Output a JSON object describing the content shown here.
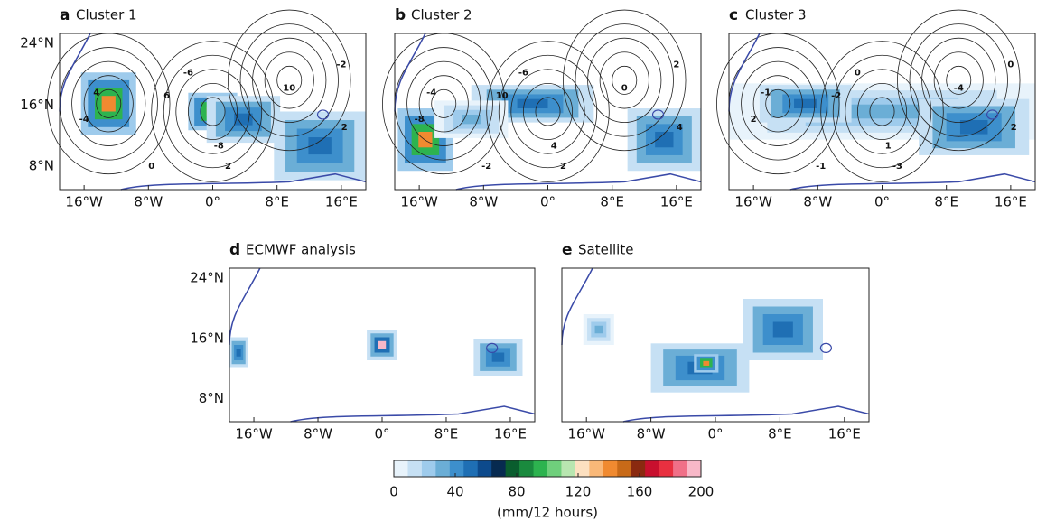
{
  "panels": [
    {
      "letter": "a",
      "title": "Cluster 1",
      "xticks": [
        "16°W",
        "8°W",
        "0°",
        "8°E",
        "16°E"
      ],
      "yticks": [
        "24°N",
        "16°N",
        "8°N"
      ],
      "contour_labels": [
        "4",
        "-4",
        "-6",
        "6",
        "-8",
        "10",
        "2",
        "0",
        "-2",
        "2"
      ]
    },
    {
      "letter": "b",
      "title": "Cluster 2",
      "xticks": [
        "16°W",
        "8°W",
        "0°",
        "8°E",
        "16°E"
      ],
      "contour_labels": [
        "-4",
        "-8",
        "-6",
        "10",
        "4",
        "0",
        "2",
        "-2",
        "2",
        "4"
      ]
    },
    {
      "letter": "c",
      "title": "Cluster 3",
      "xticks": [
        "16°W",
        "8°W",
        "0°",
        "8°E",
        "16°E"
      ],
      "contour_labels": [
        "-1",
        "2",
        "0",
        "-2",
        "1",
        "-4",
        "-3",
        "-1",
        "0",
        "2"
      ]
    },
    {
      "letter": "d",
      "title": "ECMWF analysis",
      "xticks": [
        "16°W",
        "8°W",
        "0°",
        "8°E",
        "16°E"
      ],
      "yticks": [
        "24°N",
        "16°N",
        "8°N"
      ]
    },
    {
      "letter": "e",
      "title": "Satellite",
      "xticks": [
        "16°W",
        "8°W",
        "0°",
        "8°E",
        "16°E"
      ]
    }
  ],
  "colorbar": {
    "lim": [
      0,
      200
    ],
    "ticks": [
      0,
      40,
      80,
      120,
      160,
      200
    ],
    "label": "(mm/12 hours)",
    "colors": [
      "#e8f3fb",
      "#c6e0f4",
      "#9ecbec",
      "#6baed6",
      "#3d8fcc",
      "#1f6fb4",
      "#0d4a8c",
      "#072a50",
      "#0a5d2e",
      "#1a8a3e",
      "#2db34f",
      "#6fcf7c",
      "#b8e6b0",
      "#fde0c0",
      "#f9b878",
      "#f08a30",
      "#c86a18",
      "#8a2a10",
      "#c8102e",
      "#e83040",
      "#f07088",
      "#f8b8c8"
    ]
  }
}
